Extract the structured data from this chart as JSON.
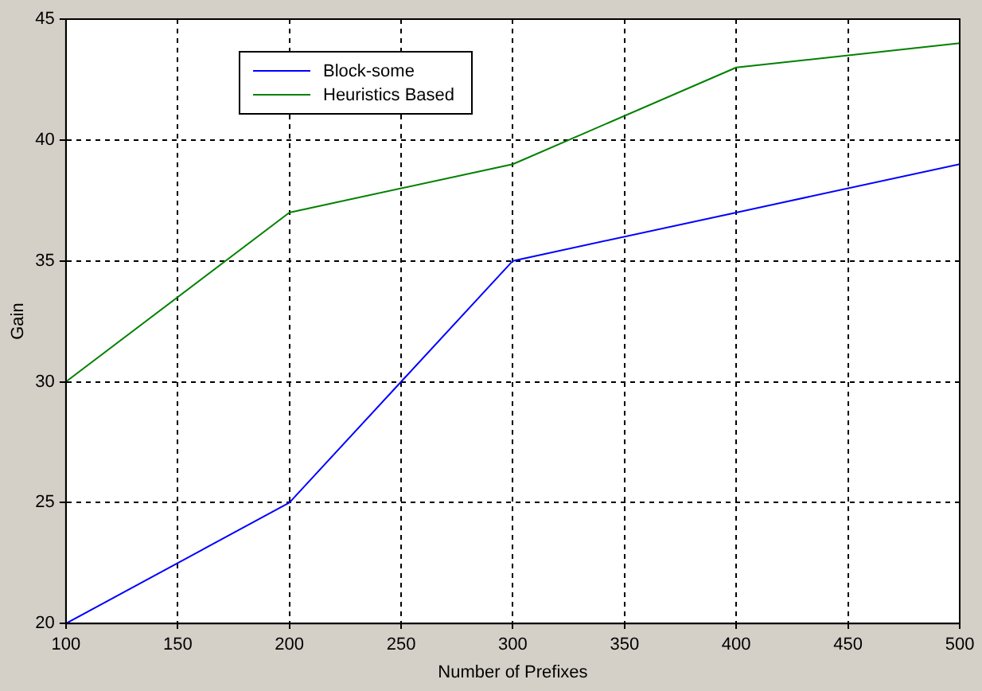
{
  "chart_data": {
    "type": "line",
    "xlabel": "Number of Prefixes",
    "ylabel": "Gain",
    "x": [
      100,
      200,
      250,
      300,
      400,
      500
    ],
    "series": [
      {
        "name": "Block-some",
        "color": "#0000ff",
        "values": [
          20,
          25,
          30,
          35,
          37,
          39
        ]
      },
      {
        "name": "Heuristics Based",
        "color": "#008000",
        "x": [
          100,
          200,
          300,
          400,
          500
        ],
        "values": [
          30,
          37,
          39,
          43,
          44
        ]
      }
    ],
    "xlim": [
      100,
      500
    ],
    "xticks": [
      100,
      150,
      200,
      250,
      300,
      350,
      400,
      450,
      500
    ],
    "ylim": [
      20,
      45
    ],
    "yticks": [
      20,
      25,
      30,
      35,
      40,
      45
    ],
    "grid": true,
    "legend": "top left",
    "marker": "none",
    "line_style": "solid"
  }
}
